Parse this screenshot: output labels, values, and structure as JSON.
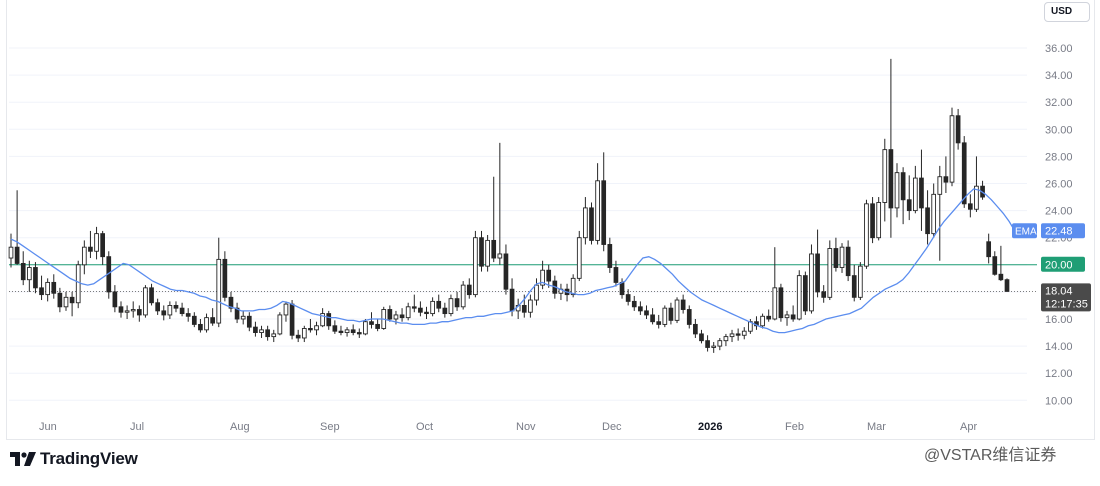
{
  "currency": "USD",
  "brand": "TradingView",
  "watermark": "@VSTAR维信证券",
  "colors": {
    "up": "#ffffff",
    "down": "#262626",
    "wick": "#262626",
    "ema": "#5b8def",
    "hline": "#1f9e75",
    "grid": "#f0f3fa"
  },
  "chart_data": {
    "type": "candlestick",
    "ylim": [
      9,
      37
    ],
    "yticks": [
      "10.00",
      "12.00",
      "14.00",
      "16.00",
      "18.00",
      "20.00",
      "22.00",
      "24.00",
      "26.00",
      "28.00",
      "30.00",
      "32.00",
      "34.00",
      "36.00"
    ],
    "xticks": [
      "Jun",
      "Jul",
      "Aug",
      "Sep",
      "Oct",
      "Nov",
      "Dec",
      "2026",
      "Feb",
      "Mar",
      "Apr"
    ],
    "bold_xticks": [
      "2026"
    ],
    "horizontal_line": {
      "value": 20.0,
      "label": "20.00"
    },
    "last_price": {
      "value": 18.04,
      "label": "18.04",
      "time": "12:17:35"
    },
    "ema": {
      "name": "EMA",
      "last_label": "22.48",
      "values": [
        21.9,
        21.7,
        21.4,
        21.1,
        20.8,
        20.5,
        20.2,
        19.9,
        19.6,
        19.3,
        19.0,
        18.8,
        18.6,
        18.5,
        18.6,
        18.9,
        19.2,
        19.5,
        19.8,
        20.1,
        20.0,
        19.7,
        19.4,
        19.1,
        18.8,
        18.6,
        18.4,
        18.2,
        18.1,
        18.1,
        18.0,
        17.9,
        17.7,
        17.6,
        17.4,
        17.3,
        17.1,
        16.9,
        16.8,
        16.6,
        16.6,
        16.6,
        16.7,
        16.7,
        16.8,
        17.0,
        17.3,
        17.2,
        17.0,
        16.8,
        16.6,
        16.4,
        16.3,
        16.2,
        16.1,
        16.1,
        16.0,
        15.9,
        15.9,
        15.8,
        15.9,
        16.0,
        16.0,
        16.0,
        15.9,
        15.8,
        15.7,
        15.7,
        15.6,
        15.6,
        15.6,
        15.7,
        15.7,
        15.8,
        15.8,
        15.9,
        16.0,
        16.1,
        16.1,
        16.2,
        16.2,
        16.3,
        16.4,
        16.4,
        16.5,
        16.6,
        17.0,
        17.5,
        18.1,
        18.6,
        18.7,
        18.5,
        18.4,
        18.2,
        18.0,
        17.9,
        17.8,
        17.8,
        17.9,
        18.1,
        18.2,
        18.3,
        18.4,
        18.6,
        18.8,
        19.4,
        20.0,
        20.5,
        20.6,
        20.4,
        20.1,
        19.7,
        19.3,
        18.8,
        18.4,
        18.0,
        17.7,
        17.4,
        17.2,
        17.0,
        16.8,
        16.6,
        16.4,
        16.2,
        16.0,
        15.8,
        15.6,
        15.4,
        15.3,
        15.1,
        15.0,
        15.0,
        15.1,
        15.2,
        15.3,
        15.5,
        15.6,
        15.8,
        16.0,
        16.1,
        16.2,
        16.3,
        16.4,
        16.6,
        16.8,
        17.2,
        17.6,
        17.9,
        18.2,
        18.4,
        18.6,
        18.9,
        19.4,
        20.0,
        20.6,
        21.2,
        21.9,
        22.6,
        23.2,
        23.7,
        24.2,
        24.7,
        25.2,
        25.6,
        25.5,
        25.2,
        24.8,
        24.3,
        23.8,
        23.2,
        22.48
      ]
    },
    "candles": [
      {
        "o": 20.5,
        "h": 22.3,
        "l": 19.8,
        "c": 21.3
      },
      {
        "o": 21.3,
        "h": 25.5,
        "l": 20.0,
        "c": 20.1
      },
      {
        "o": 20.1,
        "h": 21.0,
        "l": 18.5,
        "c": 18.9
      },
      {
        "o": 18.9,
        "h": 20.3,
        "l": 18.0,
        "c": 19.8
      },
      {
        "o": 19.8,
        "h": 20.2,
        "l": 17.9,
        "c": 18.3
      },
      {
        "o": 18.3,
        "h": 19.2,
        "l": 17.4,
        "c": 17.8
      },
      {
        "o": 17.8,
        "h": 19.0,
        "l": 17.3,
        "c": 18.7
      },
      {
        "o": 18.7,
        "h": 19.3,
        "l": 17.5,
        "c": 17.9
      },
      {
        "o": 17.9,
        "h": 18.3,
        "l": 16.5,
        "c": 16.9
      },
      {
        "o": 16.9,
        "h": 18.0,
        "l": 16.6,
        "c": 17.6
      },
      {
        "o": 17.6,
        "h": 18.0,
        "l": 16.2,
        "c": 17.2
      },
      {
        "o": 17.2,
        "h": 20.3,
        "l": 16.8,
        "c": 20.0
      },
      {
        "o": 20.0,
        "h": 21.8,
        "l": 19.3,
        "c": 21.3
      },
      {
        "o": 21.3,
        "h": 22.5,
        "l": 20.5,
        "c": 21.0
      },
      {
        "o": 21.0,
        "h": 22.8,
        "l": 20.4,
        "c": 22.3
      },
      {
        "o": 22.3,
        "h": 22.5,
        "l": 20.0,
        "c": 20.6
      },
      {
        "o": 20.6,
        "h": 21.0,
        "l": 17.5,
        "c": 18.0
      },
      {
        "o": 18.0,
        "h": 18.5,
        "l": 16.5,
        "c": 16.9
      },
      {
        "o": 16.9,
        "h": 17.3,
        "l": 16.1,
        "c": 16.5
      },
      {
        "o": 16.5,
        "h": 17.0,
        "l": 16.0,
        "c": 16.6
      },
      {
        "o": 16.6,
        "h": 17.3,
        "l": 16.1,
        "c": 16.7
      },
      {
        "o": 16.7,
        "h": 17.0,
        "l": 15.8,
        "c": 16.3
      },
      {
        "o": 16.3,
        "h": 18.5,
        "l": 16.1,
        "c": 18.3
      },
      {
        "o": 18.3,
        "h": 18.6,
        "l": 17.0,
        "c": 17.2
      },
      {
        "o": 17.2,
        "h": 17.5,
        "l": 16.3,
        "c": 16.6
      },
      {
        "o": 16.6,
        "h": 17.0,
        "l": 15.9,
        "c": 16.3
      },
      {
        "o": 16.3,
        "h": 17.3,
        "l": 16.0,
        "c": 17.0
      },
      {
        "o": 17.0,
        "h": 17.3,
        "l": 16.5,
        "c": 16.8
      },
      {
        "o": 16.8,
        "h": 17.2,
        "l": 16.2,
        "c": 16.4
      },
      {
        "o": 16.4,
        "h": 16.8,
        "l": 15.8,
        "c": 16.2
      },
      {
        "o": 16.2,
        "h": 16.5,
        "l": 15.4,
        "c": 15.6
      },
      {
        "o": 15.6,
        "h": 16.0,
        "l": 15.0,
        "c": 15.2
      },
      {
        "o": 15.2,
        "h": 16.4,
        "l": 15.0,
        "c": 16.1
      },
      {
        "o": 16.1,
        "h": 16.8,
        "l": 15.5,
        "c": 15.7
      },
      {
        "o": 15.7,
        "h": 22.0,
        "l": 15.4,
        "c": 20.4
      },
      {
        "o": 20.4,
        "h": 21.0,
        "l": 17.3,
        "c": 17.6
      },
      {
        "o": 17.6,
        "h": 18.0,
        "l": 16.5,
        "c": 16.8
      },
      {
        "o": 16.8,
        "h": 17.2,
        "l": 15.7,
        "c": 16.0
      },
      {
        "o": 16.0,
        "h": 16.6,
        "l": 15.6,
        "c": 16.2
      },
      {
        "o": 16.2,
        "h": 16.5,
        "l": 15.1,
        "c": 15.4
      },
      {
        "o": 15.4,
        "h": 15.8,
        "l": 14.7,
        "c": 15.0
      },
      {
        "o": 15.0,
        "h": 15.5,
        "l": 14.6,
        "c": 15.2
      },
      {
        "o": 15.2,
        "h": 15.5,
        "l": 14.4,
        "c": 14.7
      },
      {
        "o": 14.7,
        "h": 15.2,
        "l": 14.3,
        "c": 14.9
      },
      {
        "o": 14.9,
        "h": 16.5,
        "l": 14.8,
        "c": 16.3
      },
      {
        "o": 16.3,
        "h": 17.3,
        "l": 15.8,
        "c": 17.1
      },
      {
        "o": 17.1,
        "h": 17.4,
        "l": 14.5,
        "c": 14.8
      },
      {
        "o": 14.8,
        "h": 15.2,
        "l": 14.3,
        "c": 14.6
      },
      {
        "o": 14.6,
        "h": 15.5,
        "l": 14.3,
        "c": 15.3
      },
      {
        "o": 15.3,
        "h": 16.0,
        "l": 15.0,
        "c": 15.2
      },
      {
        "o": 15.2,
        "h": 15.8,
        "l": 14.8,
        "c": 15.5
      },
      {
        "o": 15.5,
        "h": 16.8,
        "l": 15.4,
        "c": 16.4
      },
      {
        "o": 16.4,
        "h": 16.6,
        "l": 15.2,
        "c": 15.5
      },
      {
        "o": 15.5,
        "h": 15.9,
        "l": 14.9,
        "c": 15.1
      },
      {
        "o": 15.1,
        "h": 15.5,
        "l": 14.8,
        "c": 15.0
      },
      {
        "o": 15.0,
        "h": 15.4,
        "l": 14.7,
        "c": 15.2
      },
      {
        "o": 15.2,
        "h": 15.6,
        "l": 14.8,
        "c": 15.0
      },
      {
        "o": 15.0,
        "h": 15.3,
        "l": 14.6,
        "c": 14.9
      },
      {
        "o": 14.9,
        "h": 16.0,
        "l": 14.8,
        "c": 15.8
      },
      {
        "o": 15.8,
        "h": 16.5,
        "l": 15.3,
        "c": 15.6
      },
      {
        "o": 15.6,
        "h": 16.0,
        "l": 15.1,
        "c": 15.3
      },
      {
        "o": 15.3,
        "h": 16.9,
        "l": 15.2,
        "c": 16.7
      },
      {
        "o": 16.7,
        "h": 17.0,
        "l": 15.8,
        "c": 16.0
      },
      {
        "o": 16.0,
        "h": 16.6,
        "l": 15.6,
        "c": 16.3
      },
      {
        "o": 16.3,
        "h": 16.8,
        "l": 15.8,
        "c": 16.1
      },
      {
        "o": 16.1,
        "h": 17.2,
        "l": 15.9,
        "c": 16.9
      },
      {
        "o": 16.9,
        "h": 17.8,
        "l": 16.5,
        "c": 16.8
      },
      {
        "o": 16.8,
        "h": 17.3,
        "l": 16.2,
        "c": 16.5
      },
      {
        "o": 16.5,
        "h": 16.9,
        "l": 16.0,
        "c": 16.4
      },
      {
        "o": 16.4,
        "h": 17.6,
        "l": 16.2,
        "c": 17.3
      },
      {
        "o": 17.3,
        "h": 17.8,
        "l": 16.5,
        "c": 16.8
      },
      {
        "o": 16.8,
        "h": 17.2,
        "l": 16.1,
        "c": 16.4
      },
      {
        "o": 16.4,
        "h": 17.8,
        "l": 16.2,
        "c": 17.5
      },
      {
        "o": 17.5,
        "h": 18.0,
        "l": 16.6,
        "c": 16.9
      },
      {
        "o": 16.9,
        "h": 18.8,
        "l": 16.7,
        "c": 18.5
      },
      {
        "o": 18.5,
        "h": 19.0,
        "l": 17.5,
        "c": 17.8
      },
      {
        "o": 17.8,
        "h": 22.5,
        "l": 17.6,
        "c": 22.0
      },
      {
        "o": 22.0,
        "h": 22.5,
        "l": 19.5,
        "c": 19.9
      },
      {
        "o": 19.9,
        "h": 22.2,
        "l": 19.5,
        "c": 21.8
      },
      {
        "o": 21.8,
        "h": 26.5,
        "l": 20.2,
        "c": 20.5
      },
      {
        "o": 20.5,
        "h": 29.0,
        "l": 20.0,
        "c": 20.8
      },
      {
        "o": 20.8,
        "h": 21.5,
        "l": 17.8,
        "c": 18.2
      },
      {
        "o": 18.2,
        "h": 19.0,
        "l": 16.2,
        "c": 16.6
      },
      {
        "o": 16.6,
        "h": 17.5,
        "l": 16.0,
        "c": 17.0
      },
      {
        "o": 17.0,
        "h": 17.8,
        "l": 16.1,
        "c": 16.5
      },
      {
        "o": 16.5,
        "h": 17.8,
        "l": 16.1,
        "c": 17.4
      },
      {
        "o": 17.4,
        "h": 19.0,
        "l": 17.0,
        "c": 18.5
      },
      {
        "o": 18.5,
        "h": 20.3,
        "l": 18.2,
        "c": 19.6
      },
      {
        "o": 19.6,
        "h": 20.0,
        "l": 18.3,
        "c": 18.8
      },
      {
        "o": 18.8,
        "h": 19.2,
        "l": 17.5,
        "c": 17.9
      },
      {
        "o": 17.9,
        "h": 18.6,
        "l": 17.4,
        "c": 18.2
      },
      {
        "o": 18.2,
        "h": 18.6,
        "l": 17.3,
        "c": 17.8
      },
      {
        "o": 17.8,
        "h": 19.3,
        "l": 17.6,
        "c": 19.0
      },
      {
        "o": 19.0,
        "h": 22.5,
        "l": 18.8,
        "c": 22.0
      },
      {
        "o": 22.0,
        "h": 25.0,
        "l": 21.5,
        "c": 24.2
      },
      {
        "o": 24.2,
        "h": 24.6,
        "l": 21.5,
        "c": 21.8
      },
      {
        "o": 21.8,
        "h": 27.5,
        "l": 21.5,
        "c": 26.2
      },
      {
        "o": 26.2,
        "h": 28.3,
        "l": 21.0,
        "c": 21.5
      },
      {
        "o": 21.5,
        "h": 22.0,
        "l": 19.4,
        "c": 19.8
      },
      {
        "o": 19.8,
        "h": 20.3,
        "l": 18.4,
        "c": 18.7
      },
      {
        "o": 18.7,
        "h": 19.0,
        "l": 17.5,
        "c": 17.8
      },
      {
        "o": 17.8,
        "h": 18.2,
        "l": 17.0,
        "c": 17.3
      },
      {
        "o": 17.3,
        "h": 17.7,
        "l": 16.6,
        "c": 16.9
      },
      {
        "o": 16.9,
        "h": 17.3,
        "l": 16.3,
        "c": 16.6
      },
      {
        "o": 16.6,
        "h": 17.0,
        "l": 16.0,
        "c": 16.3
      },
      {
        "o": 16.3,
        "h": 16.8,
        "l": 15.6,
        "c": 15.8
      },
      {
        "o": 15.8,
        "h": 16.3,
        "l": 15.3,
        "c": 15.6
      },
      {
        "o": 15.6,
        "h": 17.0,
        "l": 15.4,
        "c": 16.8
      },
      {
        "o": 16.8,
        "h": 17.2,
        "l": 15.6,
        "c": 15.9
      },
      {
        "o": 15.9,
        "h": 17.6,
        "l": 15.7,
        "c": 17.4
      },
      {
        "o": 17.4,
        "h": 17.8,
        "l": 16.4,
        "c": 16.7
      },
      {
        "o": 16.7,
        "h": 17.0,
        "l": 15.3,
        "c": 15.6
      },
      {
        "o": 15.6,
        "h": 16.0,
        "l": 14.6,
        "c": 14.9
      },
      {
        "o": 14.9,
        "h": 15.2,
        "l": 14.2,
        "c": 14.4
      },
      {
        "o": 14.4,
        "h": 14.8,
        "l": 13.6,
        "c": 13.9
      },
      {
        "o": 13.9,
        "h": 14.3,
        "l": 13.5,
        "c": 14.0
      },
      {
        "o": 14.0,
        "h": 14.6,
        "l": 13.7,
        "c": 14.4
      },
      {
        "o": 14.4,
        "h": 14.9,
        "l": 14.0,
        "c": 14.7
      },
      {
        "o": 14.7,
        "h": 15.2,
        "l": 14.3,
        "c": 14.9
      },
      {
        "o": 14.9,
        "h": 15.3,
        "l": 14.4,
        "c": 14.8
      },
      {
        "o": 14.8,
        "h": 15.4,
        "l": 14.5,
        "c": 15.1
      },
      {
        "o": 15.1,
        "h": 16.0,
        "l": 14.9,
        "c": 15.8
      },
      {
        "o": 15.8,
        "h": 16.2,
        "l": 15.2,
        "c": 15.5
      },
      {
        "o": 15.5,
        "h": 16.4,
        "l": 15.3,
        "c": 16.2
      },
      {
        "o": 16.2,
        "h": 16.7,
        "l": 15.8,
        "c": 16.0
      },
      {
        "o": 16.0,
        "h": 21.3,
        "l": 15.9,
        "c": 18.3
      },
      {
        "o": 18.3,
        "h": 18.6,
        "l": 15.8,
        "c": 16.1
      },
      {
        "o": 16.1,
        "h": 16.6,
        "l": 15.5,
        "c": 16.3
      },
      {
        "o": 16.3,
        "h": 17.0,
        "l": 15.8,
        "c": 16.0
      },
      {
        "o": 16.0,
        "h": 19.6,
        "l": 15.9,
        "c": 19.2
      },
      {
        "o": 19.2,
        "h": 19.5,
        "l": 16.3,
        "c": 16.6
      },
      {
        "o": 16.6,
        "h": 21.5,
        "l": 16.4,
        "c": 20.8
      },
      {
        "o": 20.8,
        "h": 22.6,
        "l": 17.6,
        "c": 18.0
      },
      {
        "o": 18.0,
        "h": 18.5,
        "l": 17.2,
        "c": 17.6
      },
      {
        "o": 17.6,
        "h": 21.8,
        "l": 17.4,
        "c": 21.2
      },
      {
        "o": 21.2,
        "h": 22.0,
        "l": 19.5,
        "c": 19.8
      },
      {
        "o": 19.8,
        "h": 21.6,
        "l": 19.4,
        "c": 21.3
      },
      {
        "o": 21.3,
        "h": 21.8,
        "l": 18.8,
        "c": 19.2
      },
      {
        "o": 19.2,
        "h": 20.0,
        "l": 17.3,
        "c": 17.6
      },
      {
        "o": 17.6,
        "h": 20.2,
        "l": 17.4,
        "c": 19.9
      },
      {
        "o": 19.9,
        "h": 24.8,
        "l": 19.7,
        "c": 24.5
      },
      {
        "o": 24.5,
        "h": 25.0,
        "l": 21.6,
        "c": 22.0
      },
      {
        "o": 22.0,
        "h": 25.0,
        "l": 21.8,
        "c": 24.6
      },
      {
        "o": 24.6,
        "h": 29.3,
        "l": 23.2,
        "c": 28.5
      },
      {
        "o": 28.5,
        "h": 35.2,
        "l": 22.0,
        "c": 24.2
      },
      {
        "o": 24.2,
        "h": 27.5,
        "l": 23.5,
        "c": 26.8
      },
      {
        "o": 26.8,
        "h": 27.2,
        "l": 23.0,
        "c": 24.8
      },
      {
        "o": 24.8,
        "h": 26.6,
        "l": 23.3,
        "c": 24.0
      },
      {
        "o": 24.0,
        "h": 27.3,
        "l": 23.8,
        "c": 26.4
      },
      {
        "o": 26.4,
        "h": 28.5,
        "l": 22.5,
        "c": 24.2
      },
      {
        "o": 24.2,
        "h": 25.5,
        "l": 21.5,
        "c": 22.3
      },
      {
        "o": 22.3,
        "h": 26.0,
        "l": 22.0,
        "c": 25.2
      },
      {
        "o": 25.2,
        "h": 27.3,
        "l": 20.3,
        "c": 26.5
      },
      {
        "o": 26.5,
        "h": 28.0,
        "l": 25.3,
        "c": 26.1
      },
      {
        "o": 26.1,
        "h": 31.6,
        "l": 25.8,
        "c": 31.0
      },
      {
        "o": 31.0,
        "h": 31.5,
        "l": 28.5,
        "c": 29.0
      },
      {
        "o": 29.0,
        "h": 29.5,
        "l": 24.2,
        "c": 24.5
      },
      {
        "o": 24.5,
        "h": 25.2,
        "l": 23.5,
        "c": 24.1
      },
      {
        "o": 24.1,
        "h": 28.0,
        "l": 23.9,
        "c": 25.8
      },
      {
        "o": 25.8,
        "h": 26.2,
        "l": 24.8,
        "c": 25.0
      },
      {
        "o": 21.7,
        "h": 22.3,
        "l": 20.1,
        "c": 20.6
      },
      {
        "o": 20.6,
        "h": 21.0,
        "l": 19.2,
        "c": 19.3
      },
      {
        "o": 19.3,
        "h": 21.4,
        "l": 18.8,
        "c": 18.9
      },
      {
        "o": 18.9,
        "h": 19.0,
        "l": 18.0,
        "c": 18.04
      }
    ]
  }
}
